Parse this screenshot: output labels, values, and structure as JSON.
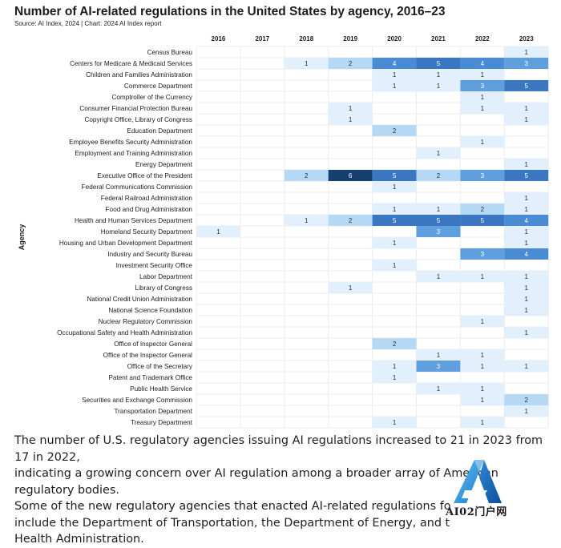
{
  "chart_data": {
    "type": "heatmap",
    "title": "Number of AI-related regulations in the United States by agency, 2016–23",
    "source": "Source: AI Index, 2024 | Chart: 2024 AI Index report",
    "ylabel": "Agency",
    "years": [
      "2016",
      "2017",
      "2018",
      "2019",
      "2020",
      "2021",
      "2022",
      "2023"
    ],
    "agencies": [
      "Census Bureau",
      "Centers for Medicare & Medicaid Services",
      "Children and Families Administration",
      "Commerce Department",
      "Comptroller of the Currency",
      "Consumer Financial Protection Bureau",
      "Copyright Office, Library of Congress",
      "Education Department",
      "Employee Benefits Security Administration",
      "Employment and Training Administration",
      "Energy Department",
      "Executive Office of the President",
      "Federal Communications Commission",
      "Federal Railroad Administration",
      "Food and Drug Administration",
      "Health and Human Services Department",
      "Homeland Security Department",
      "Housing and Urban Development Department",
      "Industry and Security Bureau",
      "Investment Security Office",
      "Labor Department",
      "Library of Congress",
      "National Credit Union Administration",
      "National Science Foundation",
      "Nuclear Regulatory Commission",
      "Occupational Safety and Health Administration",
      "Office of Inspector General",
      "Office of the Inspector General",
      "Office of the Secretary",
      "Patent and Trademark Office",
      "Public Health Service",
      "Securities and Exchange Commission",
      "Transportation Department",
      "Treasury Department"
    ],
    "values": [
      [
        null,
        null,
        null,
        null,
        null,
        null,
        null,
        1
      ],
      [
        null,
        null,
        1,
        2,
        4,
        5,
        4,
        3
      ],
      [
        null,
        null,
        null,
        null,
        1,
        1,
        1,
        null
      ],
      [
        null,
        null,
        null,
        null,
        1,
        1,
        3,
        5
      ],
      [
        null,
        null,
        null,
        null,
        null,
        null,
        1,
        null
      ],
      [
        null,
        null,
        null,
        1,
        null,
        null,
        1,
        1
      ],
      [
        null,
        null,
        null,
        1,
        null,
        null,
        null,
        1
      ],
      [
        null,
        null,
        null,
        null,
        2,
        null,
        null,
        null
      ],
      [
        null,
        null,
        null,
        null,
        null,
        null,
        1,
        null
      ],
      [
        null,
        null,
        null,
        null,
        null,
        1,
        null,
        null
      ],
      [
        null,
        null,
        null,
        null,
        null,
        null,
        null,
        1
      ],
      [
        null,
        null,
        2,
        6,
        5,
        2,
        3,
        5
      ],
      [
        null,
        null,
        null,
        null,
        1,
        null,
        null,
        null
      ],
      [
        null,
        null,
        null,
        null,
        null,
        null,
        null,
        1
      ],
      [
        null,
        null,
        null,
        null,
        1,
        1,
        2,
        1
      ],
      [
        null,
        null,
        1,
        2,
        5,
        5,
        5,
        4
      ],
      [
        1,
        null,
        null,
        null,
        null,
        3,
        null,
        1
      ],
      [
        null,
        null,
        null,
        null,
        1,
        null,
        null,
        1
      ],
      [
        null,
        null,
        null,
        null,
        null,
        null,
        3,
        4
      ],
      [
        null,
        null,
        null,
        null,
        1,
        null,
        null,
        null
      ],
      [
        null,
        null,
        null,
        null,
        null,
        1,
        1,
        1
      ],
      [
        null,
        null,
        null,
        1,
        null,
        null,
        null,
        1
      ],
      [
        null,
        null,
        null,
        null,
        null,
        null,
        null,
        1
      ],
      [
        null,
        null,
        null,
        null,
        null,
        null,
        null,
        1
      ],
      [
        null,
        null,
        null,
        null,
        null,
        null,
        1,
        null
      ],
      [
        null,
        null,
        null,
        null,
        null,
        null,
        null,
        1
      ],
      [
        null,
        null,
        null,
        null,
        2,
        null,
        null,
        null
      ],
      [
        null,
        null,
        null,
        null,
        null,
        1,
        1,
        null
      ],
      [
        null,
        null,
        null,
        null,
        1,
        3,
        1,
        1
      ],
      [
        null,
        null,
        null,
        null,
        1,
        null,
        null,
        null
      ],
      [
        null,
        null,
        null,
        null,
        null,
        1,
        1,
        null
      ],
      [
        null,
        null,
        null,
        null,
        null,
        null,
        1,
        2
      ],
      [
        null,
        null,
        null,
        null,
        null,
        null,
        null,
        1
      ],
      [
        null,
        null,
        null,
        null,
        1,
        null,
        1,
        null
      ]
    ],
    "color_scale": {
      "1": "#e2f0fd",
      "2": "#b5d8f5",
      "3": "#5f9fde",
      "4": "#4a8cd4",
      "5": "#3b77c0",
      "6": "#163e6e"
    },
    "light_text_min": 3,
    "label_color_dark": "#2b2b2b",
    "label_color_light": "#ffffff",
    "grid_color": "#ececec"
  },
  "caption": {
    "line1": "The number of U.S. regulatory agencies issuing AI regulations increased to 21 in 2023 from 17 in 2022,",
    "line2": "indicating a growing concern over AI regulation among a broader array of American regulatory bodies.",
    "line3": "Some of the new regulatory agencies that enacted AI-related regulations fo",
    "line4": "include the Department of Transportation, the Department of Energy, and t",
    "line5": "Health Administration."
  },
  "watermark": {
    "text": "AI02门户网",
    "mark_color_light": "#3aa0e6",
    "mark_color_dark": "#0f5fb0"
  }
}
